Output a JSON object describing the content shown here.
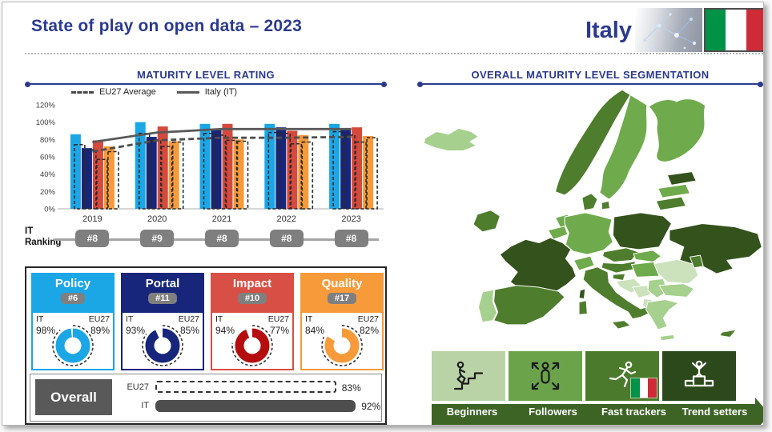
{
  "page": {
    "title": "State of play on open data – 2023",
    "country": "Italy"
  },
  "left": {
    "section_title": "MATURITY LEVEL RATING",
    "ranking": {
      "label_line1": "IT",
      "label_line2": "Ranking",
      "badges": [
        "#8",
        "#9",
        "#8",
        "#8",
        "#8"
      ]
    },
    "cards": [
      {
        "title": "Policy",
        "rank": "#6",
        "it_label": "IT",
        "eu_label": "EU27",
        "it": "98%",
        "eu": "89%",
        "it_value": 98,
        "eu_value": 89,
        "color": "#1ba6e6",
        "donut_color": "#1ba6e6"
      },
      {
        "title": "Portal",
        "rank": "#11",
        "it_label": "IT",
        "eu_label": "EU27",
        "it": "93%",
        "eu": "85%",
        "it_value": 93,
        "eu_value": 85,
        "color": "#17257b",
        "donut_color": "#17257b"
      },
      {
        "title": "Impact",
        "rank": "#10",
        "it_label": "IT",
        "eu_label": "EU27",
        "it": "94%",
        "eu": "77%",
        "it_value": 94,
        "eu_value": 77,
        "color": "#d85045",
        "donut_color": "#b50d0d"
      },
      {
        "title": "Quality",
        "rank": "#17",
        "it_label": "IT",
        "eu_label": "EU27",
        "it": "84%",
        "eu": "82%",
        "it_value": 84,
        "eu_value": 82,
        "color": "#f79a3a",
        "donut_color": "#f79a3a"
      }
    ],
    "overall": {
      "title": "Overall"
    }
  },
  "right": {
    "section_title": "OVERALL MATURITY LEVEL SEGMENTATION",
    "segmentation": {
      "levels": [
        {
          "label": "Beginners",
          "color": "#b9d3a7",
          "icon": "stairs-person-icon"
        },
        {
          "label": "Followers",
          "color": "#6aa34a",
          "icon": "arrows-person-icon"
        },
        {
          "label": "Fast trackers",
          "color": "#4b7a2c",
          "icon": "runner-icon"
        },
        {
          "label": "Trend setters",
          "color": "#2c491b",
          "icon": "podium-winner-icon"
        }
      ],
      "arrow_color": "#3e6425",
      "italy_marker_level": "Fast trackers"
    },
    "map": {
      "shades": {
        "vlight": "#cbe2bc",
        "light": "#a6d08e",
        "medium": "#6fab4c",
        "dark": "#4e7d2d",
        "vdark": "#33521c"
      },
      "countries": [
        {
          "id": "iceland",
          "shade": "light"
        },
        {
          "id": "norway",
          "shade": "dark"
        },
        {
          "id": "sweden",
          "shade": "medium"
        },
        {
          "id": "finland",
          "shade": "medium"
        },
        {
          "id": "estonia",
          "shade": "vdark"
        },
        {
          "id": "latvia",
          "shade": "medium"
        },
        {
          "id": "lithuania",
          "shade": "dark"
        },
        {
          "id": "denmark",
          "shade": "dark"
        },
        {
          "id": "denmark-island",
          "shade": "dark"
        },
        {
          "id": "ireland",
          "shade": "dark"
        },
        {
          "id": "portugal",
          "shade": "light"
        },
        {
          "id": "spain",
          "shade": "dark"
        },
        {
          "id": "france",
          "shade": "vdark"
        },
        {
          "id": "corsica",
          "shade": "vdark"
        },
        {
          "id": "sardinia",
          "shade": "dark"
        },
        {
          "id": "netherlands",
          "shade": "medium"
        },
        {
          "id": "belgium",
          "shade": "medium"
        },
        {
          "id": "germany",
          "shade": "medium"
        },
        {
          "id": "poland",
          "shade": "vdark"
        },
        {
          "id": "czechia",
          "shade": "dark"
        },
        {
          "id": "austria",
          "shade": "dark"
        },
        {
          "id": "slovakia",
          "shade": "medium"
        },
        {
          "id": "hungary",
          "shade": "medium"
        },
        {
          "id": "switzerland",
          "shade": "medium"
        },
        {
          "id": "slovenia",
          "shade": "dark"
        },
        {
          "id": "croatia",
          "shade": "vlight"
        },
        {
          "id": "bosnia",
          "shade": "vlight"
        },
        {
          "id": "serbia",
          "shade": "light"
        },
        {
          "id": "albania",
          "shade": "vlight"
        },
        {
          "id": "north-macedonia",
          "shade": "vlight"
        },
        {
          "id": "romania",
          "shade": "vlight"
        },
        {
          "id": "moldova",
          "shade": "dark"
        },
        {
          "id": "bulgaria",
          "shade": "light"
        },
        {
          "id": "greece",
          "shade": "light"
        },
        {
          "id": "crete",
          "shade": "light"
        },
        {
          "id": "ukraine",
          "shade": "vdark"
        },
        {
          "id": "italy",
          "shade": "dark"
        },
        {
          "id": "sicily",
          "shade": "dark"
        },
        {
          "id": "cyprus",
          "shade": "dark"
        }
      ]
    }
  },
  "flag": {
    "green": "#009246",
    "white": "#ffffff",
    "red": "#ce2b37"
  },
  "chart_data": [
    {
      "name": "maturity-level-rating",
      "type": "bar",
      "title": "MATURITY LEVEL RATING",
      "categories": [
        "2019",
        "2020",
        "2021",
        "2022",
        "2023"
      ],
      "ylim": [
        0,
        120
      ],
      "yticks": [
        "120%",
        "100%",
        "80%",
        "60%",
        "40%",
        "20%",
        "0%"
      ],
      "grid": false,
      "legend_position": "top",
      "legend": [
        {
          "label": "EU27 Average",
          "style": "dashed"
        },
        {
          "label": "Italy (IT)",
          "style": "solid"
        }
      ],
      "series": [
        {
          "name": "Policy IT",
          "color": "#1ba6e6",
          "style": "solid",
          "values": [
            86,
            100,
            98,
            98,
            98
          ]
        },
        {
          "name": "Portal IT",
          "color": "#17257b",
          "style": "solid",
          "values": [
            70,
            83,
            92,
            94,
            93
          ]
        },
        {
          "name": "Impact IT",
          "color": "#d6493d",
          "style": "solid",
          "values": [
            79,
            95,
            98,
            90,
            94
          ]
        },
        {
          "name": "Quality IT",
          "color": "#f79a3a",
          "style": "solid",
          "values": [
            72,
            78,
            80,
            85,
            84
          ]
        },
        {
          "name": "Policy EU27",
          "color": "#2b2b2b",
          "style": "dashed-outline",
          "values": [
            74,
            87,
            87,
            88,
            89
          ]
        },
        {
          "name": "Portal EU27",
          "color": "#2b2b2b",
          "style": "dashed-outline",
          "values": [
            68,
            79,
            85,
            87,
            85
          ]
        },
        {
          "name": "Impact EU27",
          "color": "#2b2b2b",
          "style": "dashed-outline",
          "values": [
            57,
            72,
            79,
            75,
            77
          ]
        },
        {
          "name": "Quality EU27",
          "color": "#2b2b2b",
          "style": "dashed-outline",
          "values": [
            66,
            77,
            78,
            77,
            82
          ]
        },
        {
          "name": "EU27 Average",
          "color": "#4d4d4d",
          "style": "dashed-line",
          "values": [
            66,
            79,
            82,
            82,
            83
          ]
        },
        {
          "name": "Italy (IT)",
          "color": "#595959",
          "style": "solid-line",
          "values": [
            77,
            88,
            92,
            92,
            92
          ]
        }
      ]
    },
    {
      "name": "overall-maturity",
      "type": "bar",
      "title": "Overall",
      "categories": [
        "EU27",
        "IT"
      ],
      "values": [
        83,
        92
      ],
      "labels": [
        "83%",
        "92%"
      ],
      "xlim": [
        0,
        100
      ]
    }
  ]
}
